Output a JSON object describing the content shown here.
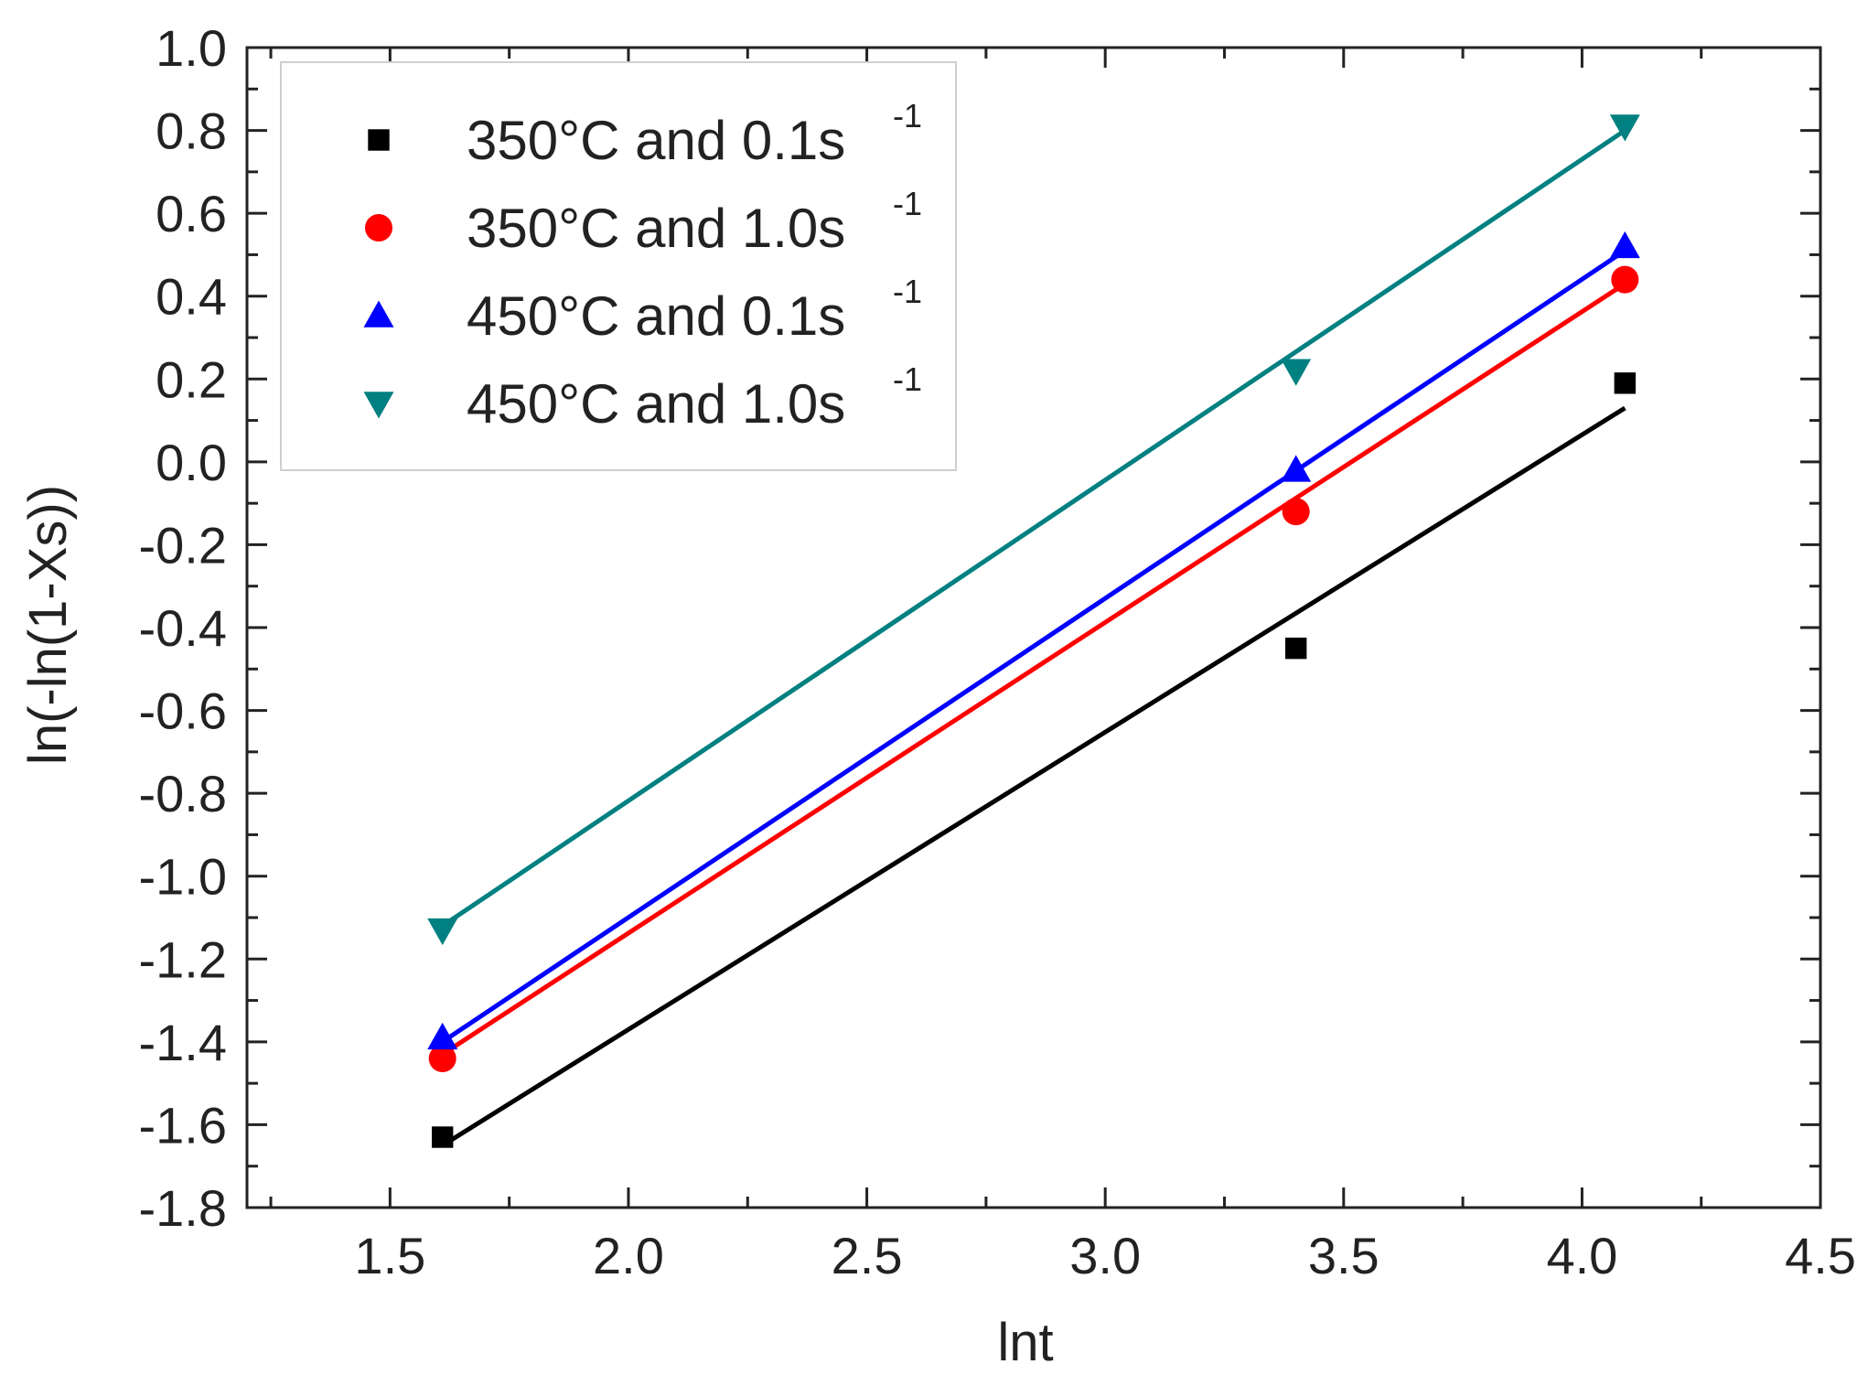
{
  "chart_data": {
    "type": "scatter",
    "title": "",
    "xlabel": "lnt",
    "ylabel": "ln(-ln(1-Xs))",
    "xlim": [
      1.2,
      4.5
    ],
    "ylim": [
      -1.8,
      1.0
    ],
    "xticks": [
      1.5,
      2.0,
      2.5,
      3.0,
      3.5,
      4.0,
      4.5
    ],
    "xtick_labels": [
      "1.5",
      "2.0",
      "2.5",
      "3.0",
      "3.5",
      "4.0",
      "4.5"
    ],
    "yticks": [
      1.0,
      0.8,
      0.6,
      0.4,
      0.2,
      0.0,
      -0.2,
      -0.4,
      -0.6,
      -0.8,
      -1.0,
      -1.2,
      -1.4,
      -1.6,
      -1.8
    ],
    "ytick_labels": [
      "1.0",
      "0.8",
      "0.6",
      "0.4",
      "0.2",
      "0.0",
      "-0.2",
      "-0.4",
      "-0.6",
      "-0.8",
      "-1.0",
      "-1.2",
      "-1.4",
      "-1.6",
      "-1.8"
    ],
    "grid": false,
    "legend_position": "top-left",
    "series": [
      {
        "name": "350°C and 0.1s-1",
        "label_main": "350°C and 0.1s",
        "label_sup": "-1",
        "color": "#000000",
        "marker": "square",
        "x": [
          1.61,
          3.4,
          4.09
        ],
        "y": [
          -1.63,
          -0.45,
          0.19
        ],
        "fit_line": {
          "x": [
            1.61,
            4.09
          ],
          "y": [
            -1.65,
            0.13
          ]
        }
      },
      {
        "name": "350°C and 1.0s-1",
        "label_main": "350°C and 1.0s",
        "label_sup": "-1",
        "color": "#ff0000",
        "marker": "circle",
        "x": [
          1.61,
          3.4,
          4.09
        ],
        "y": [
          -1.44,
          -0.12,
          0.44
        ],
        "fit_line": {
          "x": [
            1.61,
            4.09
          ],
          "y": [
            -1.43,
            0.43
          ]
        }
      },
      {
        "name": "450°C and 0.1s-1",
        "label_main": "450°C and 0.1s",
        "label_sup": "-1",
        "color": "#0000ff",
        "marker": "triangle-up",
        "x": [
          1.61,
          3.4,
          4.09
        ],
        "y": [
          -1.39,
          -0.02,
          0.52
        ],
        "fit_line": {
          "x": [
            1.61,
            4.09
          ],
          "y": [
            -1.4,
            0.51
          ]
        }
      },
      {
        "name": "450°C and 1.0s-1",
        "label_main": "450°C and 1.0s",
        "label_sup": "-1",
        "color": "#008080",
        "marker": "triangle-down",
        "x": [
          1.61,
          3.4,
          4.09
        ],
        "y": [
          -1.13,
          0.22,
          0.81
        ],
        "fit_line": {
          "x": [
            1.61,
            4.09
          ],
          "y": [
            -1.12,
            0.8
          ]
        }
      }
    ]
  }
}
